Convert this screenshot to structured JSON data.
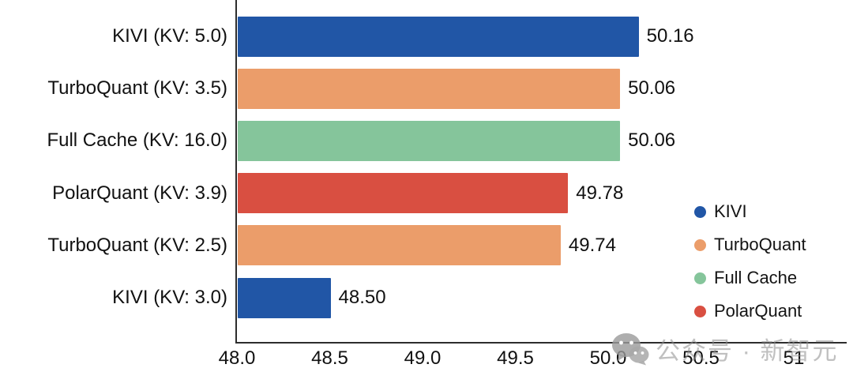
{
  "chart_data": {
    "type": "bar",
    "orientation": "horizontal",
    "title": "",
    "xlabel": "",
    "ylabel": "",
    "grid": false,
    "categories": [
      "KIVI (KV: 5.0)",
      "TurboQuant (KV: 3.5)",
      "Full Cache (KV: 16.0)",
      "PolarQuant (KV: 3.9)",
      "TurboQuant (KV: 2.5)",
      "KIVI (KV: 3.0)"
    ],
    "values": [
      50.16,
      50.06,
      50.06,
      49.78,
      49.74,
      48.5
    ],
    "value_labels": [
      "50.16",
      "50.06",
      "50.06",
      "49.78",
      "49.74",
      "48.50"
    ],
    "series_index_per_bar": [
      0,
      1,
      2,
      3,
      1,
      0
    ],
    "xlim": [
      48.0,
      51.28
    ],
    "x_ticks": [
      48.0,
      48.5,
      49.0,
      49.5,
      50.0,
      50.5,
      51.0
    ],
    "x_tick_labels": [
      "48.0",
      "48.5",
      "49.0",
      "49.5",
      "50.0",
      "50.5",
      "51"
    ],
    "legend_position": "lower right",
    "legend": [
      {
        "label": "KIVI",
        "color": "#2156a6"
      },
      {
        "label": "TurboQuant",
        "color": "#eb9d6a"
      },
      {
        "label": "Full Cache",
        "color": "#85c59b"
      },
      {
        "label": "PolarQuant",
        "color": "#d94f41"
      }
    ],
    "axis_color": "#2d2d2d",
    "text_color": "#111111"
  },
  "watermark": {
    "icon": "wechat-icon",
    "text": "公众号 · 新智元",
    "color": "#8c8c8c"
  }
}
